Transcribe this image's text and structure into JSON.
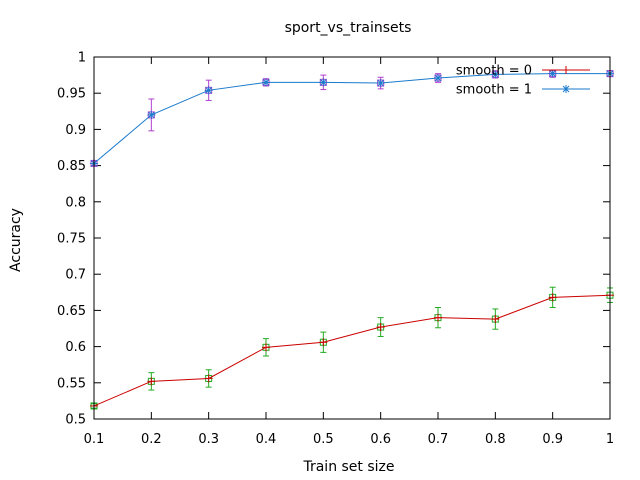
{
  "chart_data": {
    "type": "line",
    "title": "sport_vs_trainsets",
    "xlabel": "Train set size",
    "ylabel": "Accuracy",
    "xlim": [
      0.1,
      1
    ],
    "ylim": [
      0.5,
      1
    ],
    "x_ticks": [
      "0.1",
      "0.2",
      "0.3",
      "0.4",
      "0.5",
      "0.6",
      "0.7",
      "0.8",
      "0.9",
      "1"
    ],
    "y_ticks": [
      "0.5",
      "0.55",
      "0.6",
      "0.65",
      "0.7",
      "0.75",
      "0.8",
      "0.85",
      "0.9",
      "0.95",
      "1"
    ],
    "grid": false,
    "legend_position": "top-right",
    "x": [
      0.1,
      0.2,
      0.3,
      0.4,
      0.5,
      0.6,
      0.7,
      0.8,
      0.9,
      1.0
    ],
    "series": [
      {
        "name": "smooth = 0",
        "line_color": "#cc0000",
        "marker": "plus",
        "marker_color": "#cc0000",
        "errorbar_color": "#22aa22",
        "values": [
          0.518,
          0.552,
          0.556,
          0.599,
          0.606,
          0.627,
          0.64,
          0.638,
          0.668,
          0.671
        ],
        "errors": [
          0.003,
          0.012,
          0.012,
          0.012,
          0.014,
          0.013,
          0.014,
          0.014,
          0.014,
          0.01
        ]
      },
      {
        "name": "smooth = 1",
        "line_color": "#1a7acc",
        "marker": "star",
        "marker_color": "#1a7acc",
        "errorbar_color": "#b040d0",
        "values": [
          0.853,
          0.92,
          0.954,
          0.965,
          0.965,
          0.964,
          0.971,
          0.976,
          0.977,
          0.977
        ],
        "errors": [
          0.003,
          0.022,
          0.014,
          0.005,
          0.01,
          0.008,
          0.006,
          0.005,
          0.005,
          0.004
        ]
      }
    ]
  }
}
